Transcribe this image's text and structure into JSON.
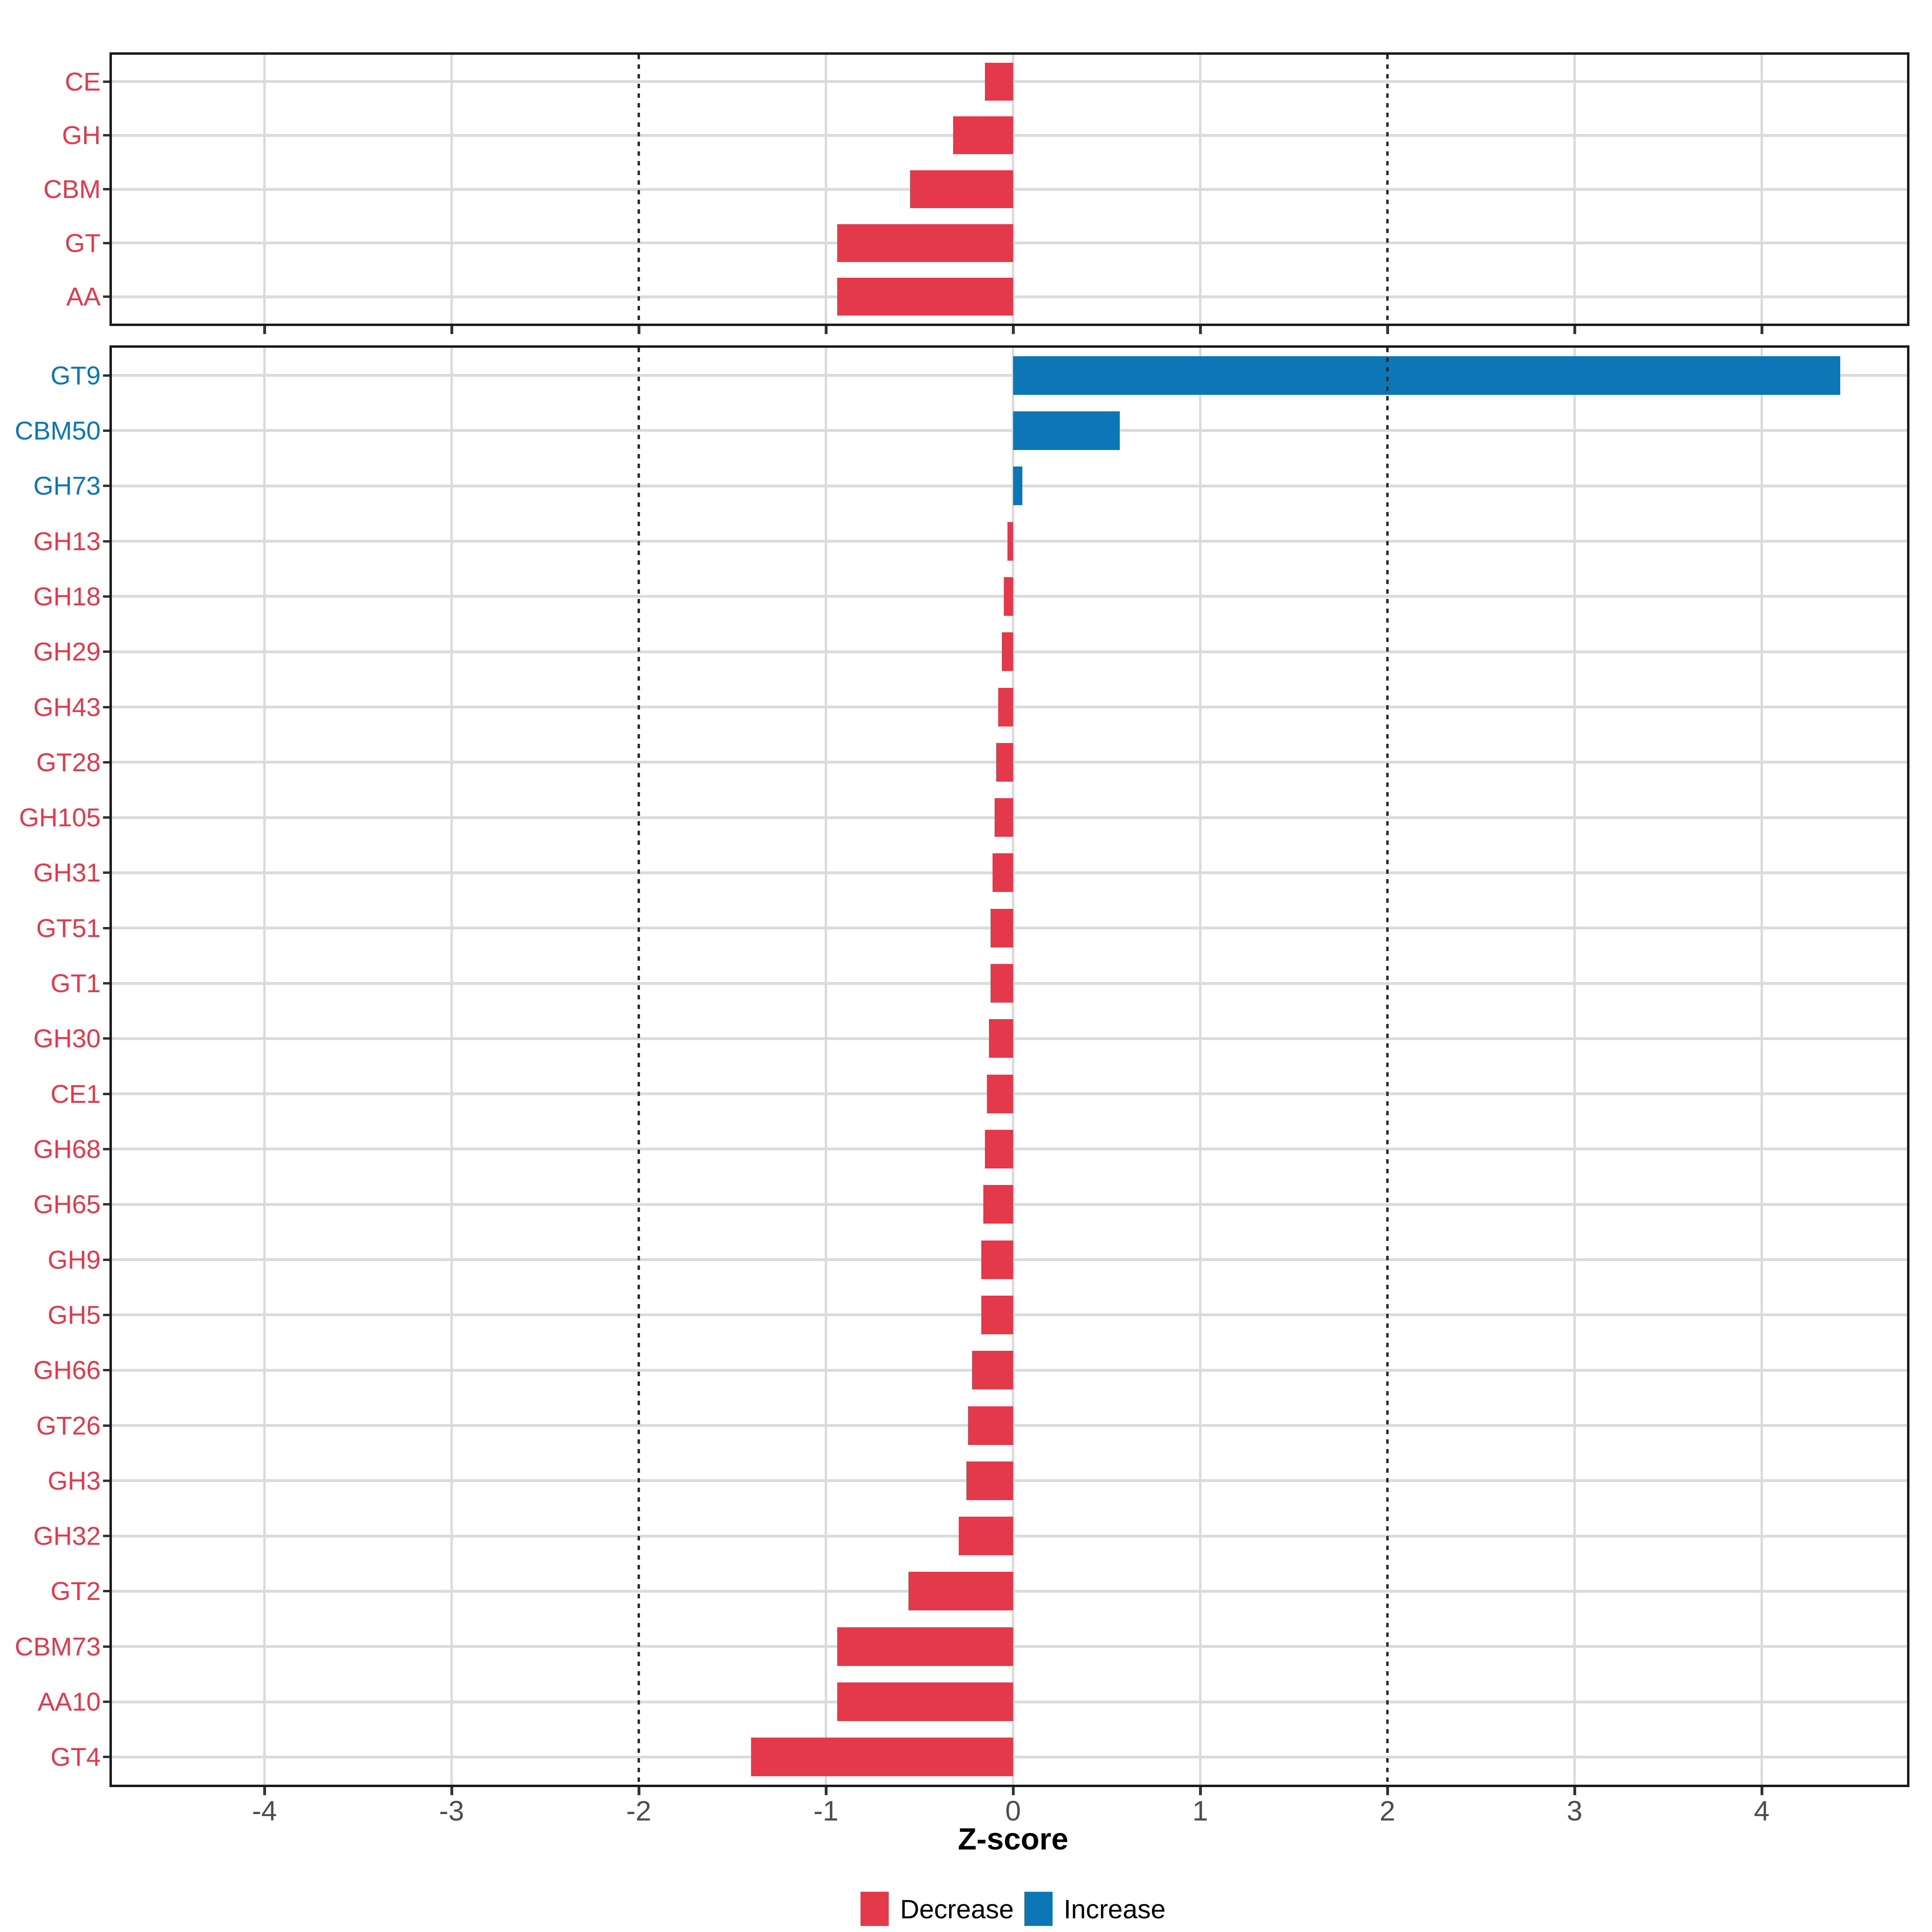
{
  "page": {
    "background": "#FFFFFF"
  },
  "axis": {
    "xlabel": "Z-score",
    "x_ticks": [
      "-4",
      "-3",
      "-2",
      "-1",
      "0",
      "1",
      "2",
      "3",
      "4"
    ],
    "x_tick_values": [
      -4,
      -3,
      -2,
      -1,
      0,
      1,
      2,
      3,
      4
    ],
    "xlim": [
      -4.81,
      4.78
    ],
    "dashed_vlines": [
      -2,
      2
    ],
    "tick_label_color": "#4D4D4D"
  },
  "legend": {
    "position": "bottom",
    "items": [
      {
        "label": "Decrease",
        "color": "#E4394B"
      },
      {
        "label": "Increase",
        "color": "#0B77B5"
      }
    ]
  },
  "colors": {
    "decrease": "#E4394B",
    "increase": "#0B77B5",
    "grid": "#DBDBDB",
    "dashed_line": "#2B2B2B",
    "panel_border": "#1A1A1A",
    "tick": "#333333",
    "axis_label": "#000000"
  },
  "chart_data": [
    {
      "type": "bar",
      "orientation": "horizontal",
      "panel": "top",
      "title": "",
      "xlabel": "Z-score",
      "xlim": [
        -4.81,
        4.78
      ],
      "grid": true,
      "categories": [
        "CE",
        "GH",
        "CBM",
        "GT",
        "AA"
      ],
      "values": [
        -0.15,
        -0.32,
        -0.55,
        -0.94,
        -0.94
      ],
      "directions": [
        "Decrease",
        "Decrease",
        "Decrease",
        "Decrease",
        "Decrease"
      ]
    },
    {
      "type": "bar",
      "orientation": "horizontal",
      "panel": "bottom",
      "title": "",
      "xlabel": "Z-score",
      "xlim": [
        -4.81,
        4.78
      ],
      "grid": true,
      "legend_position": "bottom",
      "categories": [
        "GT9",
        "CBM50",
        "GH73",
        "GH13",
        "GH18",
        "GH29",
        "GH43",
        "GT28",
        "GH105",
        "GH31",
        "GT51",
        "GT1",
        "GH30",
        "CE1",
        "GH68",
        "GH65",
        "GH9",
        "GH5",
        "GH66",
        "GT26",
        "GH3",
        "GH32",
        "GT2",
        "CBM73",
        "AA10",
        "GT4"
      ],
      "values": [
        4.42,
        0.57,
        0.05,
        -0.03,
        -0.05,
        -0.06,
        -0.08,
        -0.09,
        -0.1,
        -0.11,
        -0.12,
        -0.12,
        -0.13,
        -0.14,
        -0.15,
        -0.16,
        -0.17,
        -0.17,
        -0.22,
        -0.24,
        -0.25,
        -0.29,
        -0.56,
        -0.94,
        -0.94,
        -1.4
      ],
      "directions": [
        "Increase",
        "Increase",
        "Increase",
        "Decrease",
        "Decrease",
        "Decrease",
        "Decrease",
        "Decrease",
        "Decrease",
        "Decrease",
        "Decrease",
        "Decrease",
        "Decrease",
        "Decrease",
        "Decrease",
        "Decrease",
        "Decrease",
        "Decrease",
        "Decrease",
        "Decrease",
        "Decrease",
        "Decrease",
        "Decrease",
        "Decrease",
        "Decrease",
        "Decrease"
      ]
    }
  ]
}
